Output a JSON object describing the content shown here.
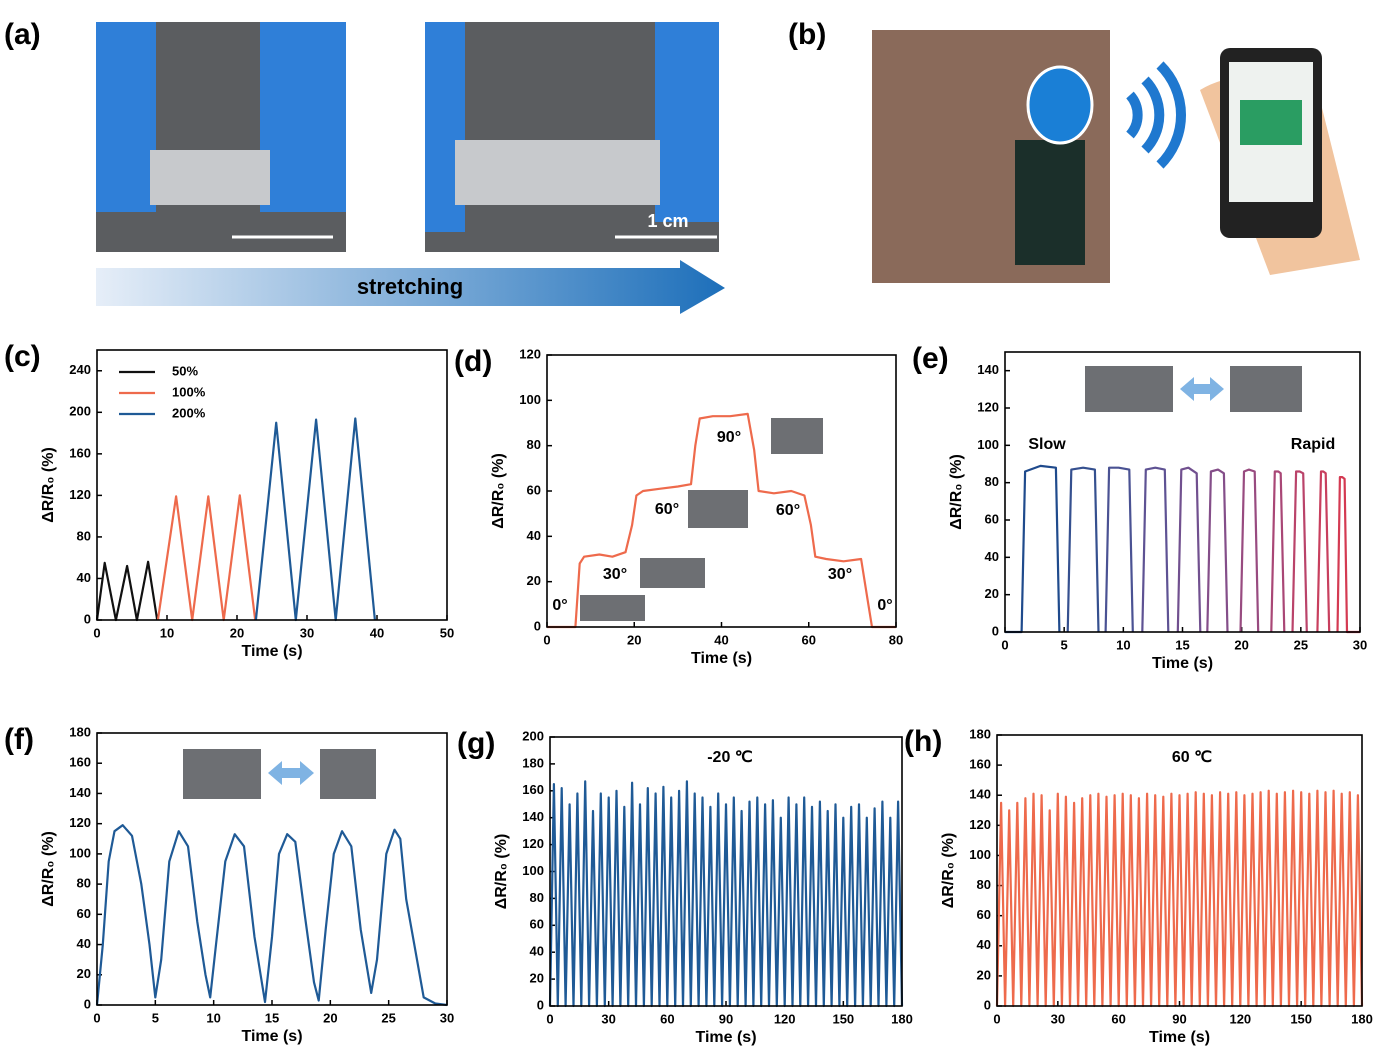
{
  "panel_a": {
    "label": "(a)",
    "arrow_text": "stretching",
    "scale_bar": "1 cm"
  },
  "panel_b": {
    "label": "(b)"
  },
  "chart_data": [
    {
      "type": "line",
      "panel": "(c)",
      "xlabel": "Time (s)",
      "ylabel": "ΔR/R₀ (%)",
      "xlim": [
        0,
        50
      ],
      "xticks": [
        0,
        10,
        20,
        30,
        40,
        50
      ],
      "ylim": [
        0,
        260
      ],
      "yticks": [
        0,
        40,
        80,
        120,
        160,
        200,
        240
      ],
      "legend": "upper left",
      "series": [
        {
          "name": "50%",
          "color": "#111111",
          "x": [
            0,
            1.1,
            2.7,
            4.3,
            5.7,
            7.3,
            8.6
          ],
          "values": [
            0,
            55,
            0,
            52,
            0,
            56,
            0
          ]
        },
        {
          "name": "100%",
          "color": "#ee6a4c",
          "x": [
            8.7,
            11.3,
            13.6,
            15.9,
            18.1,
            20.4,
            22.6
          ],
          "values": [
            0,
            119,
            0,
            119,
            0,
            120,
            0
          ]
        },
        {
          "name": "200%",
          "color": "#1f5a96",
          "x": [
            22.7,
            25.6,
            28.4,
            31.3,
            34.1,
            36.9,
            39.7
          ],
          "values": [
            0,
            190,
            0,
            193,
            0,
            194,
            0
          ]
        }
      ]
    },
    {
      "type": "line",
      "panel": "(d)",
      "xlabel": "Time (s)",
      "ylabel": "ΔR/R₀ (%)",
      "xlim": [
        0,
        80
      ],
      "xticks": [
        0,
        20,
        40,
        60,
        80
      ],
      "ylim": [
        0,
        120
      ],
      "yticks": [
        0,
        20,
        40,
        60,
        80,
        100,
        120
      ],
      "annotations": [
        "0°",
        "30°",
        "60°",
        "90°",
        "60°",
        "30°",
        "0°"
      ],
      "series": [
        {
          "color": "#ee6a4c",
          "x": [
            0,
            6.5,
            7.5,
            8.5,
            12,
            15,
            18,
            19.5,
            20.5,
            22,
            26,
            30,
            33,
            34,
            35,
            38,
            42,
            46,
            47.5,
            48.5,
            52,
            56,
            59,
            60.5,
            61.5,
            64,
            68,
            72,
            73.5,
            74.5,
            80
          ],
          "values": [
            0,
            0,
            28,
            31,
            32,
            31,
            33,
            45,
            58,
            60,
            61,
            62,
            63,
            80,
            92,
            93,
            93,
            94,
            78,
            60,
            59,
            60,
            58,
            45,
            31,
            30,
            29,
            30,
            12,
            0,
            0
          ]
        }
      ]
    },
    {
      "type": "line",
      "panel": "(e)",
      "xlabel": "Time (s)",
      "ylabel": "ΔR/R₀ (%)",
      "xlim": [
        0,
        30
      ],
      "xticks": [
        0,
        5,
        10,
        15,
        20,
        25,
        30
      ],
      "ylim": [
        0,
        150
      ],
      "yticks": [
        0,
        20,
        40,
        60,
        80,
        100,
        120,
        140
      ],
      "annotations": [
        "Slow",
        "Rapid"
      ],
      "series": [
        {
          "color": "#1f4a8c",
          "x": [
            0,
            1.4,
            1.7,
            3,
            4.3,
            4.6
          ],
          "values": [
            0,
            0,
            86,
            89,
            88,
            0
          ]
        },
        {
          "color": "#35508f",
          "x": [
            5.3,
            5.6,
            6.6,
            7.6,
            7.9
          ],
          "values": [
            0,
            87,
            88,
            87,
            0
          ]
        },
        {
          "color": "#4a5293",
          "x": [
            8.5,
            8.8,
            9.6,
            10.5,
            10.8
          ],
          "values": [
            0,
            88,
            88,
            87,
            0
          ]
        },
        {
          "color": "#5e5293",
          "x": [
            11.6,
            11.9,
            12.7,
            13.5,
            13.8
          ],
          "values": [
            0,
            87,
            88,
            87,
            0
          ]
        },
        {
          "color": "#71508f",
          "x": [
            14.6,
            14.9,
            15.5,
            16.2,
            16.5
          ],
          "values": [
            0,
            87,
            88,
            85,
            0
          ]
        },
        {
          "color": "#844e89",
          "x": [
            17.1,
            17.4,
            18,
            18.5,
            18.8
          ],
          "values": [
            0,
            86,
            87,
            85,
            0
          ]
        },
        {
          "color": "#984b80",
          "x": [
            19.9,
            20.2,
            20.6,
            21.1,
            21.4
          ],
          "values": [
            0,
            86,
            87,
            86,
            0
          ]
        },
        {
          "color": "#a94776",
          "x": [
            22.5,
            22.8,
            23.1,
            23.3,
            23.6
          ],
          "values": [
            0,
            86,
            86,
            85,
            0
          ]
        },
        {
          "color": "#ba436a",
          "x": [
            24.3,
            24.6,
            24.9,
            25.2,
            25.5
          ],
          "values": [
            0,
            86,
            86,
            85,
            0
          ]
        },
        {
          "color": "#c83f5e",
          "x": [
            26.4,
            26.7,
            26.9,
            27.1,
            27.4
          ],
          "values": [
            0,
            86,
            86,
            85,
            0
          ]
        },
        {
          "color": "#d43a52",
          "x": [
            28.1,
            28.3,
            28.5,
            28.7,
            28.9,
            30
          ],
          "values": [
            0,
            83,
            83,
            82,
            0,
            0
          ]
        }
      ]
    },
    {
      "type": "line",
      "panel": "(f)",
      "xlabel": "Time (s)",
      "ylabel": "ΔR/R₀ (%)",
      "xlim": [
        0,
        30
      ],
      "xticks": [
        0,
        5,
        10,
        15,
        20,
        25,
        30
      ],
      "ylim": [
        0,
        180
      ],
      "yticks": [
        0,
        20,
        40,
        60,
        80,
        100,
        120,
        140,
        160,
        180
      ],
      "series": [
        {
          "color": "#1f5a96",
          "x": [
            0,
            0.5,
            1,
            1.5,
            2.2,
            3,
            3.8,
            4.5,
            5,
            5.5,
            6.2,
            7,
            7.8,
            8.6,
            9.3,
            9.7,
            10.2,
            11,
            11.8,
            12.6,
            13.5,
            14.4,
            15,
            15.6,
            16.3,
            17,
            17.8,
            18.6,
            19,
            19.6,
            20.3,
            21,
            21.8,
            22.6,
            23.5,
            24,
            24.8,
            25.5,
            26,
            26.5,
            27.2,
            28,
            29,
            30
          ],
          "values": [
            0,
            40,
            95,
            115,
            119,
            112,
            80,
            40,
            5,
            30,
            95,
            115,
            105,
            55,
            20,
            5,
            40,
            95,
            113,
            105,
            45,
            2,
            45,
            100,
            113,
            108,
            60,
            15,
            3,
            50,
            100,
            115,
            105,
            50,
            8,
            30,
            100,
            116,
            110,
            70,
            40,
            5,
            1,
            0
          ]
        }
      ]
    },
    {
      "type": "line",
      "panel": "(g)",
      "xlabel": "Time (s)",
      "ylabel": "ΔR/R₀ (%)",
      "xlim": [
        0,
        180
      ],
      "xticks": [
        0,
        30,
        60,
        90,
        120,
        150,
        180
      ],
      "ylim": [
        0,
        200
      ],
      "yticks": [
        0,
        20,
        40,
        60,
        80,
        100,
        120,
        140,
        160,
        180,
        200
      ],
      "annotations": [
        "-20 ℃"
      ],
      "x": [
        0,
        2,
        4,
        6,
        8,
        10,
        12,
        14,
        16,
        18,
        20,
        22,
        24,
        26,
        28,
        30,
        32,
        34,
        36,
        38,
        40,
        42,
        44,
        46,
        48,
        50,
        52,
        54,
        56,
        58,
        60,
        62,
        64,
        66,
        68,
        70,
        72,
        74,
        76,
        78,
        80,
        82,
        84,
        86,
        88,
        90,
        92,
        94,
        96,
        98,
        100,
        102,
        104,
        106,
        108,
        110,
        112,
        114,
        116,
        118,
        120,
        122,
        124,
        126,
        128,
        130,
        132,
        134,
        136,
        138,
        140,
        142,
        144,
        146,
        148,
        150,
        152,
        154,
        156,
        158,
        160,
        162,
        164,
        166,
        168,
        170,
        172,
        174,
        176,
        178,
        180
      ],
      "series": [
        {
          "color": "#1f5a96",
          "values": [
            0,
            165,
            0,
            162,
            0,
            150,
            0,
            158,
            0,
            167,
            0,
            145,
            0,
            158,
            0,
            155,
            0,
            160,
            0,
            148,
            0,
            166,
            0,
            150,
            0,
            162,
            0,
            158,
            0,
            163,
            0,
            155,
            0,
            160,
            0,
            167,
            0,
            158,
            0,
            155,
            0,
            148,
            0,
            158,
            0,
            150,
            0,
            155,
            0,
            145,
            0,
            152,
            0,
            155,
            0,
            150,
            0,
            153,
            0,
            140,
            0,
            155,
            0,
            150,
            0,
            155,
            0,
            148,
            0,
            152,
            0,
            145,
            0,
            150,
            0,
            140,
            0,
            148,
            0,
            150,
            0,
            140,
            0,
            147,
            0,
            152,
            0,
            140,
            0,
            152,
            0
          ]
        }
      ]
    },
    {
      "type": "line",
      "panel": "(h)",
      "xlabel": "Time (s)",
      "ylabel": "ΔR/R₀ (%)",
      "xlim": [
        0,
        180
      ],
      "xticks": [
        0,
        30,
        60,
        90,
        120,
        150,
        180
      ],
      "ylim": [
        0,
        180
      ],
      "yticks": [
        0,
        20,
        40,
        60,
        80,
        100,
        120,
        140,
        160,
        180
      ],
      "annotations": [
        "60 ℃"
      ],
      "x": [
        0,
        2,
        4,
        6,
        8,
        10,
        12,
        14,
        16,
        18,
        20,
        22,
        24,
        26,
        28,
        30,
        32,
        34,
        36,
        38,
        40,
        42,
        44,
        46,
        48,
        50,
        52,
        54,
        56,
        58,
        60,
        62,
        64,
        66,
        68,
        70,
        72,
        74,
        76,
        78,
        80,
        82,
        84,
        86,
        88,
        90,
        92,
        94,
        96,
        98,
        100,
        102,
        104,
        106,
        108,
        110,
        112,
        114,
        116,
        118,
        120,
        122,
        124,
        126,
        128,
        130,
        132,
        134,
        136,
        138,
        140,
        142,
        144,
        146,
        148,
        150,
        152,
        154,
        156,
        158,
        160,
        162,
        164,
        166,
        168,
        170,
        172,
        174,
        176,
        178,
        180
      ],
      "series": [
        {
          "color": "#ee6a4c",
          "values": [
            0,
            135,
            0,
            130,
            0,
            135,
            0,
            138,
            0,
            141,
            0,
            140,
            0,
            130,
            0,
            141,
            0,
            139,
            0,
            135,
            0,
            138,
            0,
            140,
            0,
            141,
            0,
            139,
            0,
            140,
            0,
            141,
            0,
            140,
            0,
            138,
            0,
            141,
            0,
            140,
            0,
            139,
            0,
            141,
            0,
            140,
            0,
            141,
            0,
            142,
            0,
            141,
            0,
            140,
            0,
            142,
            0,
            141,
            0,
            142,
            0,
            140,
            0,
            141,
            0,
            142,
            0,
            143,
            0,
            141,
            0,
            142,
            0,
            143,
            0,
            142,
            0,
            141,
            0,
            143,
            0,
            142,
            0,
            143,
            0,
            141,
            0,
            142,
            0,
            140,
            0
          ]
        }
      ]
    }
  ]
}
